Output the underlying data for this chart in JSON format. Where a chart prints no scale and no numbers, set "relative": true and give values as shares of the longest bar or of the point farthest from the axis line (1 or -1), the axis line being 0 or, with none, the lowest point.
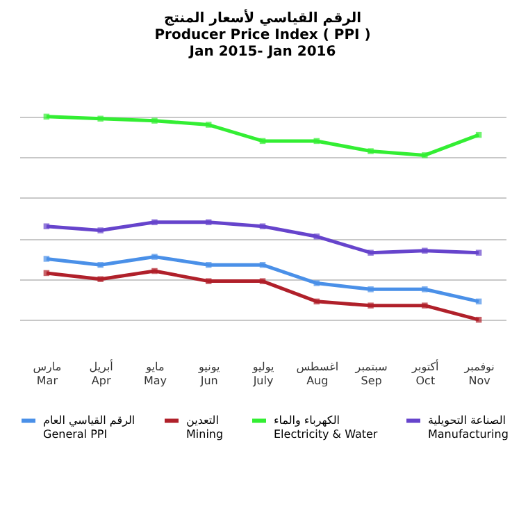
{
  "chart_data": {
    "type": "line",
    "title": "الرقم القياسي لأسعار المنتج\nProducer Price Index ( PPI )\nJan 2015- Jan 2016",
    "relative": true,
    "grid": "y",
    "marker": "square",
    "legend": "bottom",
    "categories": [
      "مارس\nMar",
      "أبريل\nApr",
      "مايو\nMay",
      "يونيو\nJun",
      "يوليو\nJuly",
      "اغسطس\nAug",
      "سبتمبر\nSep",
      "أكتوبر\nOct",
      "نوفمبر\nNov"
    ],
    "series": [
      {
        "name": "الرقم القياسي العام\nGeneral  PPI",
        "color": "#4a90e8",
        "values": [
          0.3,
          0.27,
          0.31,
          0.27,
          0.27,
          0.18,
          0.15,
          0.15,
          0.09
        ]
      },
      {
        "name": "التعدين\nMining",
        "color": "#b0202a",
        "values": [
          0.23,
          0.2,
          0.24,
          0.19,
          0.19,
          0.09,
          0.07,
          0.07,
          0
        ]
      },
      {
        "name": "الكهرباء والماء\nElectricity & Water",
        "color": "#33ee33",
        "values": [
          1,
          0.99,
          0.98,
          0.96,
          0.88,
          0.88,
          0.83,
          0.81,
          0.91
        ]
      },
      {
        "name": "الصناعة التحويلية\nManufacturing",
        "color": "#6644cc",
        "values": [
          0.46,
          0.44,
          0.48,
          0.48,
          0.46,
          0.41,
          0.33,
          0.34,
          0.33
        ]
      }
    ]
  }
}
